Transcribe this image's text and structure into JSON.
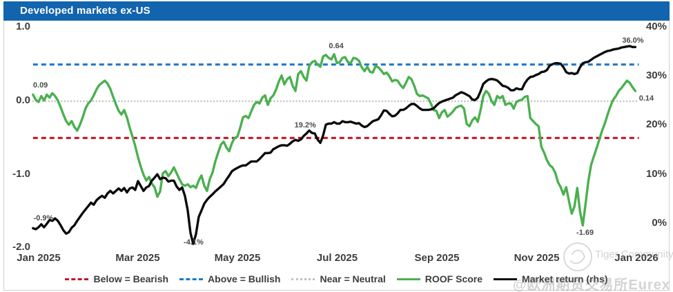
{
  "header": {
    "title": "Developed markets ex-US"
  },
  "colors": {
    "header_bg": "#1364ae",
    "roof_green": "#4bb04f",
    "market_black": "#0a0a0a",
    "bearish_red": "#c0152f",
    "bullish_blue": "#1f78c8",
    "neutral_gray": "#c0c0c0",
    "tick_text": "#3d3d3d"
  },
  "chart_data": {
    "type": "line",
    "title": "Developed markets ex-US",
    "x_axis": {
      "unit": "months from Jan 2025",
      "ticks": [
        {
          "m": 0,
          "label": "Jan 2025"
        },
        {
          "m": 2,
          "label": "Mar 2025"
        },
        {
          "m": 4,
          "label": "May 2025"
        },
        {
          "m": 6,
          "label": "Jul 2025"
        },
        {
          "m": 8,
          "label": "Sep 2025"
        },
        {
          "m": 10,
          "label": "Nov 2025"
        },
        {
          "m": 12,
          "label": "Jan 2026"
        }
      ]
    },
    "y_left": {
      "name": "ROOF Score",
      "range": [
        -2.0,
        1.0
      ],
      "ticks": [
        {
          "v": 1.0,
          "label": "1.0"
        },
        {
          "v": 0.0,
          "label": "0.0"
        },
        {
          "v": -1.0,
          "label": "-1.0"
        },
        {
          "v": -2.0,
          "label": "-2.0"
        }
      ]
    },
    "y_right": {
      "name": "Market return",
      "range_pct": [
        -6.2,
        41.2
      ],
      "ticks": [
        {
          "v": 40,
          "label": "40%"
        },
        {
          "v": 30,
          "label": "30%"
        },
        {
          "v": 20,
          "label": "20%"
        },
        {
          "v": 10,
          "label": "10%"
        },
        {
          "v": 0,
          "label": "0%"
        }
      ]
    },
    "reference_lines": [
      {
        "label": "Above = Bullish",
        "axis": "left",
        "value": 0.5,
        "style": "dashed",
        "color": "#1f78c8"
      },
      {
        "label": "Near = Neutral",
        "axis": "left",
        "value": 0.0,
        "style": "dotted",
        "color": "#c0c0c0"
      },
      {
        "label": "Below = Bearish",
        "axis": "left",
        "value": -0.5,
        "style": "dashed",
        "color": "#c0152f"
      }
    ],
    "series": [
      {
        "name": "ROOF Score",
        "axis": "left",
        "color": "#4bb04f",
        "width": 3.4,
        "x0": -0.1,
        "dx": 0.0554,
        "values": [
          0.09,
          0.02,
          -0.01,
          0.07,
          0.01,
          0.09,
          0.05,
          0.11,
          0.07,
          0.01,
          -0.08,
          -0.18,
          -0.27,
          -0.32,
          -0.27,
          -0.35,
          -0.4,
          -0.32,
          -0.22,
          -0.1,
          -0.03,
          0.01,
          0.08,
          0.16,
          0.22,
          0.25,
          0.28,
          0.24,
          0.17,
          0.06,
          -0.04,
          -0.13,
          -0.18,
          -0.12,
          -0.22,
          -0.36,
          -0.48,
          -0.61,
          -0.76,
          -0.89,
          -1.0,
          -1.08,
          -1.03,
          -1.12,
          -1.17,
          -1.3,
          -1.23,
          -0.98,
          -0.95,
          -1.02,
          -0.97,
          -0.9,
          -0.98,
          -1.06,
          -1.13,
          -1.15,
          -1.13,
          -1.17,
          -1.15,
          -1.18,
          -1.08,
          -1.01,
          -1.15,
          -1.22,
          -1.06,
          -0.97,
          -0.82,
          -0.7,
          -0.59,
          -0.55,
          -0.63,
          -0.68,
          -0.57,
          -0.5,
          -0.48,
          -0.36,
          -0.22,
          -0.2,
          -0.23,
          -0.14,
          -0.05,
          -0.01,
          -0.03,
          0.05,
          0.08,
          -0.05,
          0.04,
          0.08,
          0.16,
          0.27,
          0.35,
          0.23,
          0.3,
          0.33,
          0.21,
          0.14,
          0.37,
          0.41,
          0.33,
          0.28,
          0.48,
          0.53,
          0.55,
          0.5,
          0.47,
          0.61,
          0.63,
          0.59,
          0.57,
          0.64,
          0.52,
          0.53,
          0.59,
          0.6,
          0.53,
          0.52,
          0.59,
          0.58,
          0.55,
          0.46,
          0.41,
          0.47,
          0.4,
          0.39,
          0.48,
          0.46,
          0.42,
          0.37,
          0.39,
          0.34,
          0.27,
          0.29,
          0.28,
          0.22,
          0.18,
          0.25,
          0.33,
          0.3,
          0.21,
          0.1,
          0.07,
          0.08,
          0.06,
          0.04,
          -0.03,
          -0.12,
          -0.13,
          -0.23,
          -0.15,
          -0.12,
          -0.21,
          -0.18,
          -0.14,
          -0.09,
          -0.07,
          -0.06,
          -0.1,
          -0.31,
          -0.34,
          -0.26,
          -0.22,
          -0.28,
          -0.12,
          0.07,
          0.14,
          0.1,
          0.0,
          -0.05,
          0.07,
          0.04,
          0.07,
          -0.05,
          -0.03,
          -0.03,
          -0.1,
          -0.01,
          0.01,
          0.02,
          0.06,
          0.07,
          -0.23,
          -0.27,
          -0.31,
          -0.34,
          -0.62,
          -0.7,
          -0.8,
          -0.87,
          -0.9,
          -0.97,
          -1.1,
          -1.17,
          -1.27,
          -1.17,
          -1.36,
          -1.53,
          -1.43,
          -1.18,
          -1.5,
          -1.69,
          -1.4,
          -1.09,
          -0.87,
          -0.75,
          -0.64,
          -0.52,
          -0.4,
          -0.3,
          -0.18,
          -0.07,
          0.02,
          0.07,
          0.14,
          0.18,
          0.23,
          0.28,
          0.25,
          0.19,
          0.14
        ]
      },
      {
        "name": "Market return (rhs)",
        "axis": "right",
        "color": "#0a0a0a",
        "width": 3.4,
        "x0": -0.1,
        "dx": 0.0554,
        "values": [
          -0.9,
          -1.1,
          -0.7,
          -0.1,
          -0.7,
          0.0,
          0.8,
          0.6,
          1.1,
          0.6,
          -0.3,
          -1.3,
          -2.0,
          -1.7,
          -0.8,
          -0.3,
          0.6,
          1.4,
          2.2,
          2.9,
          3.6,
          4.3,
          3.9,
          4.8,
          5.3,
          5.7,
          5.3,
          6.2,
          6.7,
          6.2,
          6.7,
          7.2,
          6.7,
          7.3,
          6.4,
          7.2,
          7.4,
          6.9,
          8.7,
          7.7,
          6.7,
          7.4,
          7.7,
          8.8,
          9.4,
          10.1,
          9.1,
          9.4,
          9.3,
          8.6,
          8.8,
          8.8,
          7.6,
          6.9,
          7.4,
          5.7,
          2.8,
          -1.8,
          -4.1,
          -2.1,
          1.4,
          2.7,
          4.1,
          4.9,
          5.5,
          6.0,
          6.6,
          7.1,
          7.6,
          8.1,
          9.0,
          9.8,
          10.7,
          11.1,
          11.4,
          11.7,
          11.9,
          11.9,
          12.3,
          12.7,
          12.7,
          12.7,
          13.2,
          13.8,
          14.4,
          14.4,
          14.5,
          15.2,
          15.5,
          15.8,
          16.0,
          16.0,
          15.9,
          16.3,
          16.8,
          17.1,
          16.9,
          17.2,
          17.9,
          18.4,
          19.0,
          18.5,
          18.4,
          17.2,
          16.5,
          18.0,
          20.2,
          20.4,
          20.4,
          20.7,
          20.4,
          20.4,
          20.9,
          20.7,
          20.7,
          20.8,
          20.6,
          20.4,
          20.5,
          20.0,
          19.7,
          19.9,
          20.4,
          20.9,
          21.1,
          21.3,
          22.1,
          23.1,
          23.0,
          22.4,
          21.9,
          22.0,
          22.5,
          23.2,
          23.2,
          23.5,
          24.0,
          24.4,
          24.4,
          24.0,
          23.5,
          23.2,
          23.2,
          23.2,
          23.3,
          23.5,
          24.1,
          24.6,
          24.9,
          25.1,
          25.3,
          25.5,
          25.7,
          26.2,
          26.5,
          26.8,
          26.6,
          26.3,
          26.0,
          25.3,
          25.2,
          25.7,
          27.0,
          28.5,
          29.0,
          29.4,
          29.5,
          29.4,
          29.2,
          28.7,
          28.1,
          28.0,
          27.7,
          27.2,
          27.2,
          27.6,
          27.4,
          27.4,
          28.6,
          29.4,
          29.9,
          30.0,
          30.3,
          30.5,
          30.9,
          31.0,
          31.3,
          32.2,
          32.5,
          32.7,
          32.7,
          32.6,
          31.9,
          30.9,
          30.6,
          30.7,
          30.5,
          30.7,
          31.9,
          32.7,
          32.9,
          33.0,
          33.4,
          33.8,
          34.1,
          34.4,
          34.7,
          35.0,
          35.2,
          35.3,
          35.5,
          35.6,
          35.7,
          35.9,
          36.0,
          36.1,
          36.2,
          36.0,
          36.0
        ]
      }
    ],
    "annotations": [
      {
        "text": "0.09",
        "axis": "left",
        "m": 0.05,
        "v": 0.21
      },
      {
        "text": "-0.9%",
        "axis": "right",
        "m": 0.11,
        "v": 1.0
      },
      {
        "text": "-4.1%",
        "axis": "right",
        "m": 3.12,
        "v": -3.9
      },
      {
        "text": "19.2%",
        "axis": "right",
        "m": 5.36,
        "v": 19.9
      },
      {
        "text": "0.64",
        "axis": "left",
        "m": 5.98,
        "v": 0.74
      },
      {
        "text": "36.0%",
        "axis": "right",
        "m": 11.93,
        "v": 37.1
      },
      {
        "text": "0.14",
        "axis": "left",
        "m": 12.2,
        "v": 0.03
      },
      {
        "text": "-1.69",
        "axis": "left",
        "m": 10.97,
        "v": -1.8
      }
    ]
  },
  "legend": {
    "items": [
      {
        "label": "Below = Bearish",
        "style": "dashed",
        "color": "#c0152f"
      },
      {
        "label": "Above = Bullish",
        "style": "dashed",
        "color": "#1f78c8"
      },
      {
        "label": "Near = Neutral",
        "style": "dotted",
        "color": "#c0c0c0"
      },
      {
        "label": "ROOF Score",
        "style": "solid",
        "color": "#4bb04f"
      },
      {
        "label": "Market return (rhs)",
        "style": "solid",
        "color": "#0a0a0a"
      }
    ]
  },
  "watermarks": {
    "tiger_text": "Tiger Community",
    "eurex_text": "@欧洲期货交易所Eurex"
  }
}
